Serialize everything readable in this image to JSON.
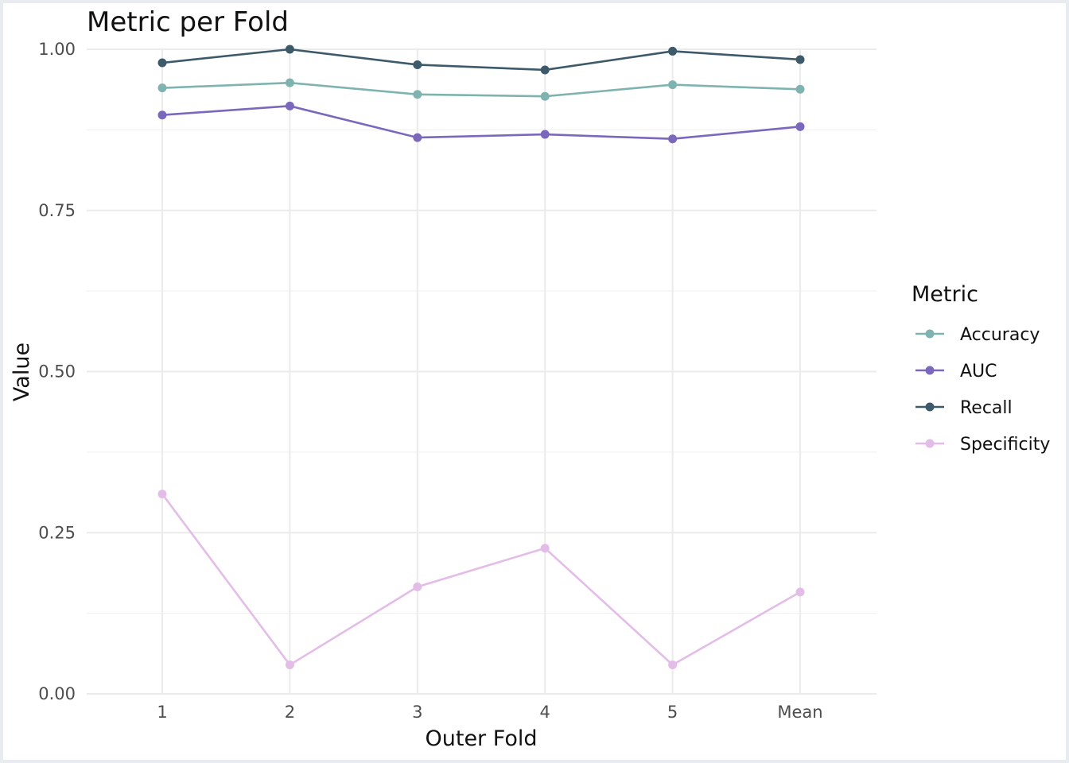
{
  "chart_data": {
    "type": "line",
    "title": "Metric per Fold",
    "xlabel": "Outer Fold",
    "ylabel": "Value",
    "categories": [
      "1",
      "2",
      "3",
      "4",
      "5",
      "Mean"
    ],
    "ylim": [
      0,
      1
    ],
    "y_ticks": [
      "0.00",
      "0.25",
      "0.50",
      "0.75",
      "1.00"
    ],
    "grid": true,
    "legend": {
      "title": "Metric",
      "placement": "right"
    },
    "series": [
      {
        "name": "Accuracy",
        "color": "#7fb3b0",
        "values": [
          0.94,
          0.948,
          0.93,
          0.927,
          0.945,
          0.938
        ]
      },
      {
        "name": "AUC",
        "color": "#7b68bd",
        "values": [
          0.898,
          0.912,
          0.863,
          0.868,
          0.861,
          0.88
        ]
      },
      {
        "name": "Recall",
        "color": "#3d5a6b",
        "values": [
          0.979,
          1.0,
          0.976,
          0.968,
          0.997,
          0.984
        ]
      },
      {
        "name": "Specificity",
        "color": "#e3bde8",
        "values": [
          0.31,
          0.045,
          0.166,
          0.226,
          0.045,
          0.158
        ]
      }
    ]
  }
}
